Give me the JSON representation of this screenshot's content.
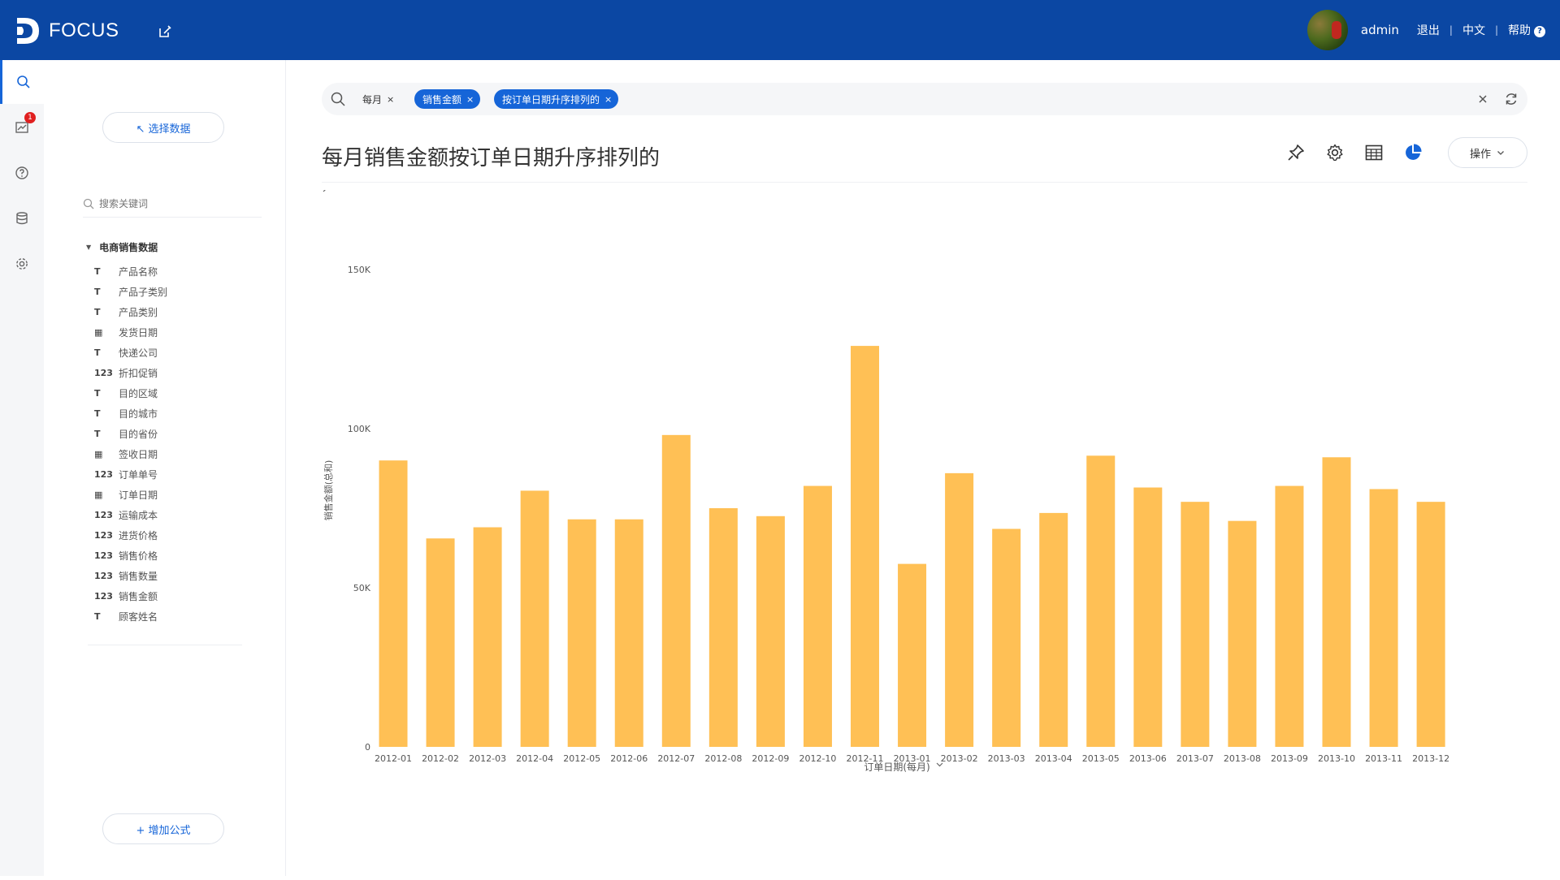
{
  "app": {
    "logo_text": "FOCUS"
  },
  "header": {
    "user": "admin",
    "logout": "退出",
    "language": "中文",
    "help": "帮助",
    "sep": "|"
  },
  "panel": {
    "select_data": "↖ 选择数据",
    "search_placeholder": "搜索关键词",
    "dataset": "电商销售数据",
    "fields": [
      {
        "type": "text",
        "icon": "T",
        "label": "产品名称"
      },
      {
        "type": "text",
        "icon": "T",
        "label": "产品子类别"
      },
      {
        "type": "text",
        "icon": "T",
        "label": "产品类别"
      },
      {
        "type": "date",
        "icon": "▦",
        "label": "发货日期"
      },
      {
        "type": "text",
        "icon": "T",
        "label": "快递公司"
      },
      {
        "type": "number",
        "icon": "123",
        "label": "折扣促销"
      },
      {
        "type": "text",
        "icon": "T",
        "label": "目的区域"
      },
      {
        "type": "text",
        "icon": "T",
        "label": "目的城市"
      },
      {
        "type": "text",
        "icon": "T",
        "label": "目的省份"
      },
      {
        "type": "date",
        "icon": "▦",
        "label": "签收日期"
      },
      {
        "type": "number",
        "icon": "123",
        "label": "订单单号"
      },
      {
        "type": "date",
        "icon": "▦",
        "label": "订单日期"
      },
      {
        "type": "number",
        "icon": "123",
        "label": "运输成本"
      },
      {
        "type": "number",
        "icon": "123",
        "label": "进货价格"
      },
      {
        "type": "number",
        "icon": "123",
        "label": "销售价格"
      },
      {
        "type": "number",
        "icon": "123",
        "label": "销售数量"
      },
      {
        "type": "number",
        "icon": "123",
        "label": "销售金额"
      },
      {
        "type": "text",
        "icon": "T",
        "label": "顾客姓名"
      }
    ],
    "add_formula": "+ 增加公式"
  },
  "rail": {
    "notification_count": "1"
  },
  "search": {
    "tokens": [
      {
        "label": "每月",
        "style": "plain"
      },
      {
        "label": "销售金额",
        "style": "blue"
      },
      {
        "label": "按订单日期升序排列的",
        "style": "blue"
      }
    ],
    "close_glyph": "×"
  },
  "main": {
    "title": "每月销售金额按订单日期升序排列的",
    "operate_label": "操作"
  },
  "colors": {
    "header": "#0b47a3",
    "accent": "#1665d8",
    "bar": "#ffc055"
  },
  "chart_data": {
    "type": "bar",
    "xlabel": "订单日期(每月)",
    "ylabel": "销售金额(总和)",
    "ylim": [
      0,
      150000
    ],
    "yticks": [
      {
        "value": 0,
        "label": "0"
      },
      {
        "value": 50000,
        "label": "50K"
      },
      {
        "value": 100000,
        "label": "100K"
      },
      {
        "value": 150000,
        "label": "150K"
      }
    ],
    "categories": [
      "2012-01",
      "2012-02",
      "2012-03",
      "2012-04",
      "2012-05",
      "2012-06",
      "2012-07",
      "2012-08",
      "2012-09",
      "2012-10",
      "2012-11",
      "2013-01",
      "2013-02",
      "2013-03",
      "2013-04",
      "2013-05",
      "2013-06",
      "2013-07",
      "2013-08",
      "2013-09",
      "2013-10",
      "2013-11",
      "2013-12"
    ],
    "values": [
      90000,
      65500,
      69000,
      80500,
      71500,
      71500,
      98000,
      75000,
      72500,
      82000,
      126000,
      57500,
      86000,
      68500,
      73500,
      91500,
      81500,
      77000,
      71000,
      82000,
      91000,
      81000,
      77000
    ],
    "legend": "none",
    "grid": false
  }
}
